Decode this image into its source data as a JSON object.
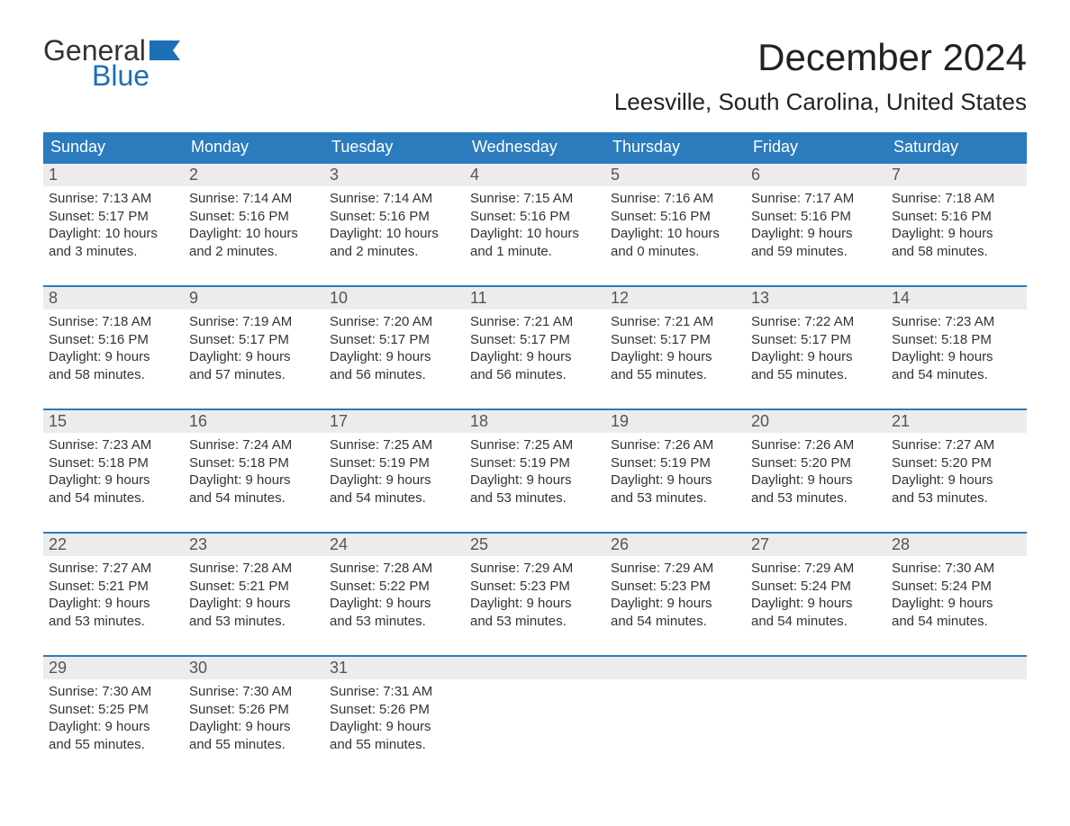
{
  "brand": {
    "word1": "General",
    "word2": "Blue",
    "primary_color": "#1d6fb8"
  },
  "title": "December 2024",
  "location": "Leesville, South Carolina, United States",
  "header_bg": "#2b7bbd",
  "daynum_bg": "#ececec",
  "weekdays": [
    "Sunday",
    "Monday",
    "Tuesday",
    "Wednesday",
    "Thursday",
    "Friday",
    "Saturday"
  ],
  "weeks": [
    [
      {
        "n": "1",
        "sr": "Sunrise: 7:13 AM",
        "ss": "Sunset: 5:17 PM",
        "d1": "Daylight: 10 hours",
        "d2": "and 3 minutes."
      },
      {
        "n": "2",
        "sr": "Sunrise: 7:14 AM",
        "ss": "Sunset: 5:16 PM",
        "d1": "Daylight: 10 hours",
        "d2": "and 2 minutes."
      },
      {
        "n": "3",
        "sr": "Sunrise: 7:14 AM",
        "ss": "Sunset: 5:16 PM",
        "d1": "Daylight: 10 hours",
        "d2": "and 2 minutes."
      },
      {
        "n": "4",
        "sr": "Sunrise: 7:15 AM",
        "ss": "Sunset: 5:16 PM",
        "d1": "Daylight: 10 hours",
        "d2": "and 1 minute."
      },
      {
        "n": "5",
        "sr": "Sunrise: 7:16 AM",
        "ss": "Sunset: 5:16 PM",
        "d1": "Daylight: 10 hours",
        "d2": "and 0 minutes."
      },
      {
        "n": "6",
        "sr": "Sunrise: 7:17 AM",
        "ss": "Sunset: 5:16 PM",
        "d1": "Daylight: 9 hours",
        "d2": "and 59 minutes."
      },
      {
        "n": "7",
        "sr": "Sunrise: 7:18 AM",
        "ss": "Sunset: 5:16 PM",
        "d1": "Daylight: 9 hours",
        "d2": "and 58 minutes."
      }
    ],
    [
      {
        "n": "8",
        "sr": "Sunrise: 7:18 AM",
        "ss": "Sunset: 5:16 PM",
        "d1": "Daylight: 9 hours",
        "d2": "and 58 minutes."
      },
      {
        "n": "9",
        "sr": "Sunrise: 7:19 AM",
        "ss": "Sunset: 5:17 PM",
        "d1": "Daylight: 9 hours",
        "d2": "and 57 minutes."
      },
      {
        "n": "10",
        "sr": "Sunrise: 7:20 AM",
        "ss": "Sunset: 5:17 PM",
        "d1": "Daylight: 9 hours",
        "d2": "and 56 minutes."
      },
      {
        "n": "11",
        "sr": "Sunrise: 7:21 AM",
        "ss": "Sunset: 5:17 PM",
        "d1": "Daylight: 9 hours",
        "d2": "and 56 minutes."
      },
      {
        "n": "12",
        "sr": "Sunrise: 7:21 AM",
        "ss": "Sunset: 5:17 PM",
        "d1": "Daylight: 9 hours",
        "d2": "and 55 minutes."
      },
      {
        "n": "13",
        "sr": "Sunrise: 7:22 AM",
        "ss": "Sunset: 5:17 PM",
        "d1": "Daylight: 9 hours",
        "d2": "and 55 minutes."
      },
      {
        "n": "14",
        "sr": "Sunrise: 7:23 AM",
        "ss": "Sunset: 5:18 PM",
        "d1": "Daylight: 9 hours",
        "d2": "and 54 minutes."
      }
    ],
    [
      {
        "n": "15",
        "sr": "Sunrise: 7:23 AM",
        "ss": "Sunset: 5:18 PM",
        "d1": "Daylight: 9 hours",
        "d2": "and 54 minutes."
      },
      {
        "n": "16",
        "sr": "Sunrise: 7:24 AM",
        "ss": "Sunset: 5:18 PM",
        "d1": "Daylight: 9 hours",
        "d2": "and 54 minutes."
      },
      {
        "n": "17",
        "sr": "Sunrise: 7:25 AM",
        "ss": "Sunset: 5:19 PM",
        "d1": "Daylight: 9 hours",
        "d2": "and 54 minutes."
      },
      {
        "n": "18",
        "sr": "Sunrise: 7:25 AM",
        "ss": "Sunset: 5:19 PM",
        "d1": "Daylight: 9 hours",
        "d2": "and 53 minutes."
      },
      {
        "n": "19",
        "sr": "Sunrise: 7:26 AM",
        "ss": "Sunset: 5:19 PM",
        "d1": "Daylight: 9 hours",
        "d2": "and 53 minutes."
      },
      {
        "n": "20",
        "sr": "Sunrise: 7:26 AM",
        "ss": "Sunset: 5:20 PM",
        "d1": "Daylight: 9 hours",
        "d2": "and 53 minutes."
      },
      {
        "n": "21",
        "sr": "Sunrise: 7:27 AM",
        "ss": "Sunset: 5:20 PM",
        "d1": "Daylight: 9 hours",
        "d2": "and 53 minutes."
      }
    ],
    [
      {
        "n": "22",
        "sr": "Sunrise: 7:27 AM",
        "ss": "Sunset: 5:21 PM",
        "d1": "Daylight: 9 hours",
        "d2": "and 53 minutes."
      },
      {
        "n": "23",
        "sr": "Sunrise: 7:28 AM",
        "ss": "Sunset: 5:21 PM",
        "d1": "Daylight: 9 hours",
        "d2": "and 53 minutes."
      },
      {
        "n": "24",
        "sr": "Sunrise: 7:28 AM",
        "ss": "Sunset: 5:22 PM",
        "d1": "Daylight: 9 hours",
        "d2": "and 53 minutes."
      },
      {
        "n": "25",
        "sr": "Sunrise: 7:29 AM",
        "ss": "Sunset: 5:23 PM",
        "d1": "Daylight: 9 hours",
        "d2": "and 53 minutes."
      },
      {
        "n": "26",
        "sr": "Sunrise: 7:29 AM",
        "ss": "Sunset: 5:23 PM",
        "d1": "Daylight: 9 hours",
        "d2": "and 54 minutes."
      },
      {
        "n": "27",
        "sr": "Sunrise: 7:29 AM",
        "ss": "Sunset: 5:24 PM",
        "d1": "Daylight: 9 hours",
        "d2": "and 54 minutes."
      },
      {
        "n": "28",
        "sr": "Sunrise: 7:30 AM",
        "ss": "Sunset: 5:24 PM",
        "d1": "Daylight: 9 hours",
        "d2": "and 54 minutes."
      }
    ],
    [
      {
        "n": "29",
        "sr": "Sunrise: 7:30 AM",
        "ss": "Sunset: 5:25 PM",
        "d1": "Daylight: 9 hours",
        "d2": "and 55 minutes."
      },
      {
        "n": "30",
        "sr": "Sunrise: 7:30 AM",
        "ss": "Sunset: 5:26 PM",
        "d1": "Daylight: 9 hours",
        "d2": "and 55 minutes."
      },
      {
        "n": "31",
        "sr": "Sunrise: 7:31 AM",
        "ss": "Sunset: 5:26 PM",
        "d1": "Daylight: 9 hours",
        "d2": "and 55 minutes."
      },
      null,
      null,
      null,
      null
    ]
  ]
}
